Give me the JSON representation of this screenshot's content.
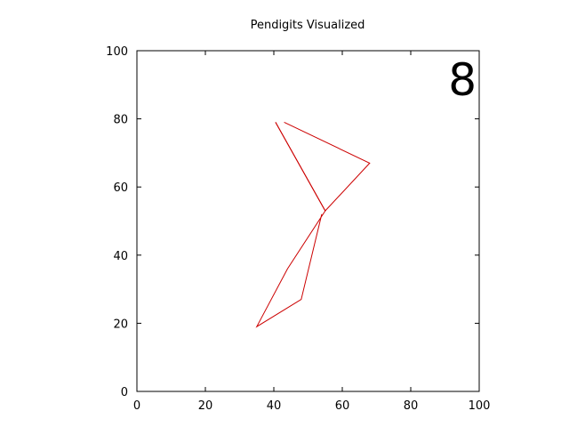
{
  "chart_data": {
    "type": "line",
    "title": "Pendigits Visualized",
    "xlabel": "",
    "ylabel": "",
    "xlim": [
      0,
      100
    ],
    "ylim": [
      0,
      100
    ],
    "xticks": [
      0,
      20,
      40,
      60,
      80,
      100
    ],
    "yticks": [
      0,
      20,
      40,
      60,
      80,
      100
    ],
    "grid": false,
    "annotation": "8",
    "series": [
      {
        "color": "#cc0000",
        "x": [
          43,
          68,
          55,
          40.5
        ],
        "y": [
          79,
          67,
          53,
          79
        ]
      },
      {
        "color": "#cc0000",
        "x": [
          40.5,
          55,
          44,
          35,
          48,
          54
        ],
        "y": [
          79,
          53,
          36,
          19,
          27,
          52
        ]
      }
    ]
  }
}
